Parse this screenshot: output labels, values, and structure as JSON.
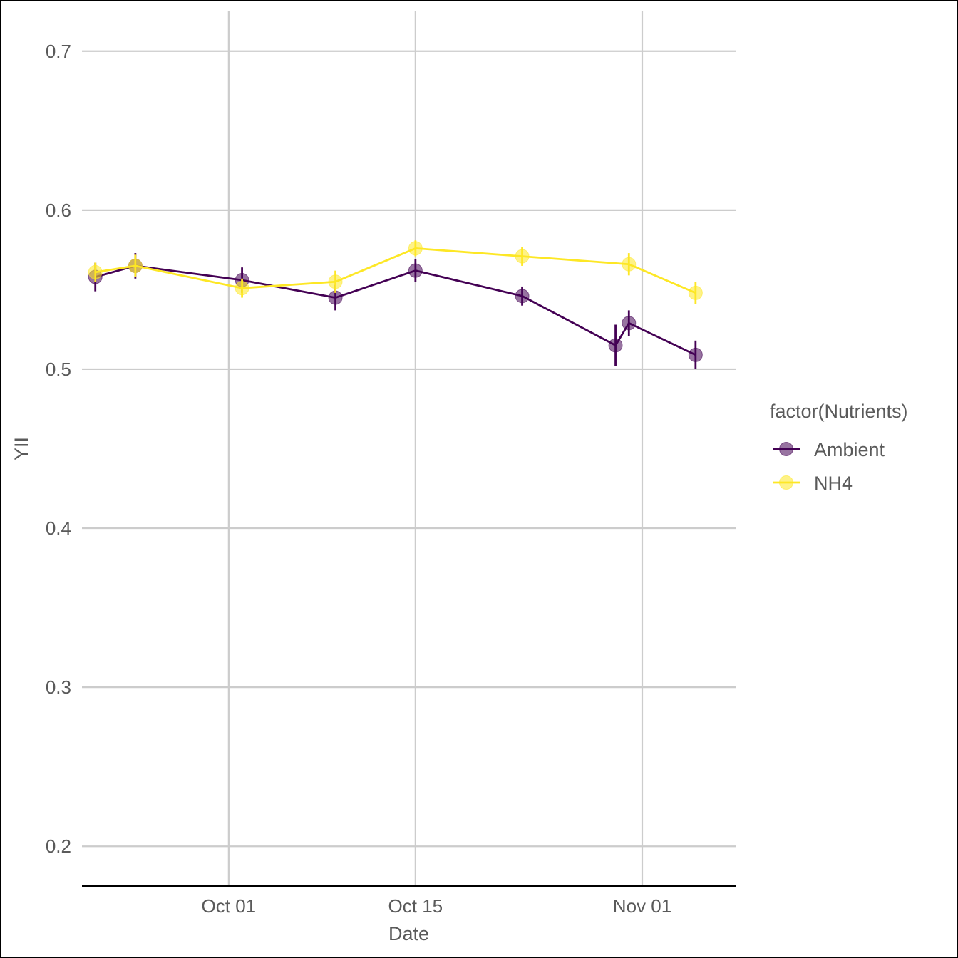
{
  "chart_data": {
    "type": "line",
    "xlabel": "Date",
    "ylabel": "YII",
    "x_ticks": [
      {
        "date": "2023-10-01",
        "label": "Oct 01"
      },
      {
        "date": "2023-10-15",
        "label": "Oct 15"
      },
      {
        "date": "2023-11-01",
        "label": "Nov 01"
      }
    ],
    "y_ticks": [
      0.2,
      0.3,
      0.4,
      0.5,
      0.6,
      0.7
    ],
    "xlim": [
      "2023-09-20",
      "2023-11-08"
    ],
    "ylim": [
      0.175,
      0.725
    ],
    "grid": true,
    "legend": {
      "title": "factor(Nutrients)",
      "placement": "right"
    },
    "series": [
      {
        "name": "Ambient",
        "color": "#440154",
        "points": [
          {
            "x": "2023-09-21",
            "y": 0.558,
            "err": 0.009
          },
          {
            "x": "2023-09-24",
            "y": 0.565,
            "err": 0.008
          },
          {
            "x": "2023-10-02",
            "y": 0.556,
            "err": 0.008
          },
          {
            "x": "2023-10-09",
            "y": 0.545,
            "err": 0.008
          },
          {
            "x": "2023-10-15",
            "y": 0.562,
            "err": 0.007
          },
          {
            "x": "2023-10-23",
            "y": 0.546,
            "err": 0.006
          },
          {
            "x": "2023-10-30",
            "y": 0.515,
            "err": 0.013
          },
          {
            "x": "2023-10-31",
            "y": 0.529,
            "err": 0.008
          },
          {
            "x": "2023-11-05",
            "y": 0.509,
            "err": 0.009
          }
        ]
      },
      {
        "name": "NH4",
        "color": "#fde725",
        "points": [
          {
            "x": "2023-09-21",
            "y": 0.561,
            "err": 0.006
          },
          {
            "x": "2023-09-24",
            "y": 0.565,
            "err": 0.007
          },
          {
            "x": "2023-10-02",
            "y": 0.551,
            "err": 0.006
          },
          {
            "x": "2023-10-09",
            "y": 0.555,
            "err": 0.007
          },
          {
            "x": "2023-10-15",
            "y": 0.576,
            "err": 0.005
          },
          {
            "x": "2023-10-23",
            "y": 0.571,
            "err": 0.006
          },
          {
            "x": "2023-10-31",
            "y": 0.566,
            "err": 0.007
          },
          {
            "x": "2023-11-05",
            "y": 0.548,
            "err": 0.007
          }
        ]
      }
    ]
  }
}
